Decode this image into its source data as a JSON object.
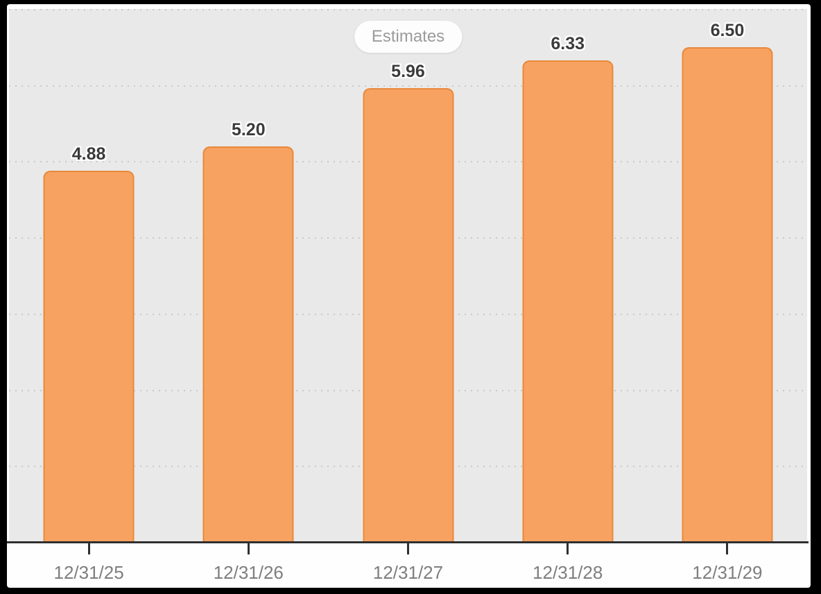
{
  "frame": {
    "surround_color": "#000000",
    "card_background": "#fefefe"
  },
  "badge": {
    "label": "Estimates",
    "text_color": "#9b9b9b",
    "background": "#fdfdfd"
  },
  "chart_data": {
    "type": "bar",
    "title": "",
    "subtitle": "",
    "xlabel": "",
    "ylabel": "",
    "legend": [
      "Estimates"
    ],
    "legend_position": "top-center",
    "categories": [
      "12/31/25",
      "12/31/26",
      "12/31/27",
      "12/31/28",
      "12/31/29"
    ],
    "values": [
      4.88,
      5.2,
      5.96,
      6.33,
      6.5
    ],
    "value_labels": [
      "4.88",
      "5.20",
      "5.96",
      "6.33",
      "6.50"
    ],
    "ylim": [
      0,
      7
    ],
    "gridline_step": 1,
    "gridline_count": 7,
    "grid_style": "horizontal dotted",
    "grid_color": "#c9c9c9",
    "plot_background": "#e9e9e9",
    "bar_color": "#f7a261",
    "bar_border_color": "#e8893b",
    "axis_color": "#2f2f2f",
    "tick_label_color": "#7e7e7e",
    "value_label_color": "#3b3b3b"
  }
}
